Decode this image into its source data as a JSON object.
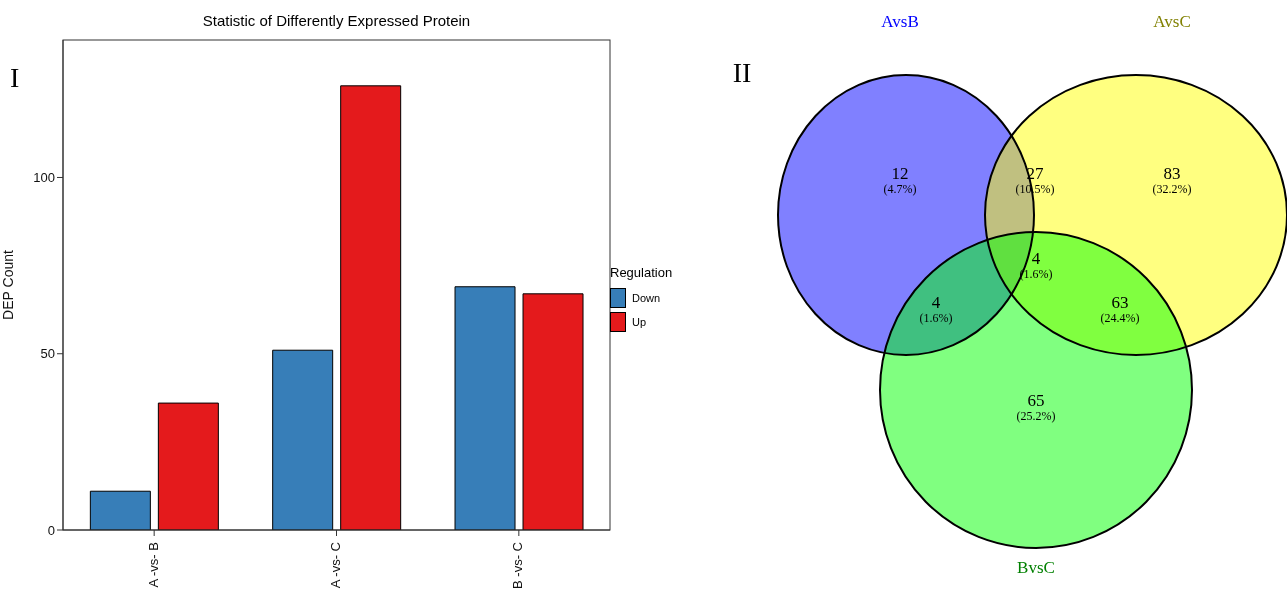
{
  "chart_data": [
    {
      "type": "bar",
      "title": "Statistic of Differently Expressed Protein",
      "ylabel": "DEP Count",
      "legend_title": "Regulation",
      "categories": [
        "A -vs- B",
        "A -vs- C",
        "B -vs- C"
      ],
      "series": [
        {
          "name": "Down",
          "color": "#377eb8",
          "values": [
            11,
            51,
            69
          ]
        },
        {
          "name": "Up",
          "color": "#e41a1c",
          "values": [
            36,
            126,
            67
          ]
        }
      ],
      "ylim": [
        0,
        139
      ],
      "yticks": [
        0,
        50,
        100
      ],
      "grid": false,
      "legend": "right",
      "annotations": [
        "I"
      ]
    },
    {
      "type": "other",
      "annotations": [
        "II",
        "AvsB",
        "AvsC",
        "BvsC",
        "(4.7%)",
        "(10.5%)",
        "(32.2%)",
        "(1.6%)",
        "(1.6%)",
        "(24.4%)",
        "(25.2%)"
      ],
      "categories": [
        null,
        null,
        null,
        null,
        null,
        null,
        null
      ],
      "values": [
        12,
        27,
        83,
        4,
        4,
        63,
        65
      ],
      "colors": [
        "#8080ff",
        "#c0c080",
        "#ffff80",
        "#60e040",
        "#40c080",
        "#80ff40",
        "#80ff80"
      ],
      "data_labels": true
    }
  ]
}
